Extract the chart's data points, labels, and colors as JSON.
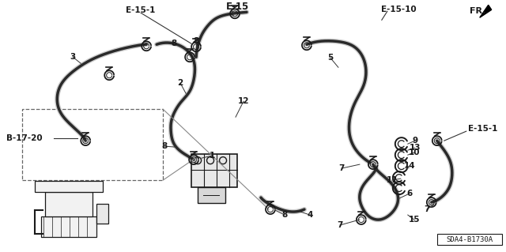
{
  "bg_color": "#ffffff",
  "line_color": "#1a1a1a",
  "text_color": "#1a1a1a",
  "diagram_ref": "SDA4-B1730A",
  "label_e15_1_top": "E-15-1",
  "label_e15": "E-15",
  "label_e15_10": "E-15-10",
  "label_fr": "FR.",
  "label_b1720": "B-17-20",
  "label_e15_1_right": "E-15-1"
}
